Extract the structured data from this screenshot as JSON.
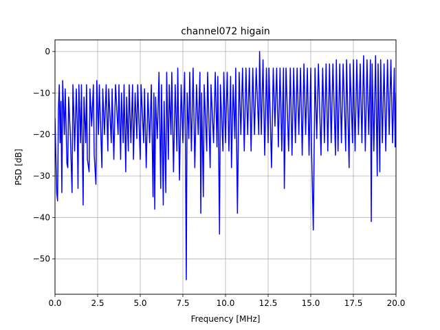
{
  "chart_data": {
    "type": "line",
    "title": "channel072 higain",
    "xlabel": "Frequency [MHz]",
    "ylabel": "PSD [dB]",
    "xlim": [
      0,
      20
    ],
    "ylim": [
      -58.5,
      2.8
    ],
    "x_ticks": [
      0,
      2.5,
      5,
      7.5,
      10,
      12.5,
      15,
      17.5,
      20
    ],
    "x_tick_labels": [
      "0.0",
      "2.5",
      "5.0",
      "7.5",
      "10.0",
      "12.5",
      "15.0",
      "17.5",
      "20.0"
    ],
    "y_ticks": [
      0,
      -10,
      -20,
      -30,
      -40,
      -50
    ],
    "y_tick_labels": [
      "0",
      "−10",
      "−20",
      "−30",
      "−40",
      "−50"
    ],
    "grid": true,
    "legend": "none",
    "series": [
      {
        "color": "#0000ff",
        "points": [
          [
            0.0,
            -16
          ],
          [
            0.05,
            -25
          ],
          [
            0.1,
            -34
          ],
          [
            0.15,
            -36
          ],
          [
            0.2,
            -14
          ],
          [
            0.25,
            -8
          ],
          [
            0.3,
            -22
          ],
          [
            0.35,
            -12
          ],
          [
            0.4,
            -34
          ],
          [
            0.45,
            -7
          ],
          [
            0.55,
            -20
          ],
          [
            0.6,
            -9
          ],
          [
            0.7,
            -27
          ],
          [
            0.75,
            -28
          ],
          [
            0.8,
            -11
          ],
          [
            0.9,
            -20
          ],
          [
            1.0,
            -34
          ],
          [
            1.05,
            -8
          ],
          [
            1.1,
            -14
          ],
          [
            1.15,
            -24
          ],
          [
            1.25,
            -9
          ],
          [
            1.3,
            -17
          ],
          [
            1.35,
            -33
          ],
          [
            1.4,
            -8
          ],
          [
            1.5,
            -22
          ],
          [
            1.55,
            -8
          ],
          [
            1.65,
            -37
          ],
          [
            1.7,
            -11
          ],
          [
            1.8,
            -22
          ],
          [
            1.85,
            -8
          ],
          [
            1.9,
            -26
          ],
          [
            2.0,
            -29
          ],
          [
            2.05,
            -9
          ],
          [
            2.15,
            -18
          ],
          [
            2.25,
            -8
          ],
          [
            2.3,
            -25
          ],
          [
            2.4,
            -32
          ],
          [
            2.45,
            -7
          ],
          [
            2.55,
            -20
          ],
          [
            2.6,
            -8
          ],
          [
            2.75,
            -28
          ],
          [
            2.8,
            -9
          ],
          [
            2.9,
            -20
          ],
          [
            3.0,
            -8
          ],
          [
            3.1,
            -24
          ],
          [
            3.15,
            -9
          ],
          [
            3.3,
            -22
          ],
          [
            3.35,
            -9
          ],
          [
            3.45,
            -26
          ],
          [
            3.55,
            -8
          ],
          [
            3.7,
            -20
          ],
          [
            3.75,
            -8
          ],
          [
            3.85,
            -26
          ],
          [
            3.9,
            -10
          ],
          [
            4.0,
            -22
          ],
          [
            4.05,
            -8
          ],
          [
            4.15,
            -29
          ],
          [
            4.2,
            -11
          ],
          [
            4.3,
            -24
          ],
          [
            4.35,
            -8
          ],
          [
            4.45,
            -22
          ],
          [
            4.55,
            -8
          ],
          [
            4.6,
            -26
          ],
          [
            4.7,
            -10
          ],
          [
            4.8,
            -21
          ],
          [
            4.85,
            -8
          ],
          [
            5.0,
            -26
          ],
          [
            5.05,
            -8
          ],
          [
            5.2,
            -22
          ],
          [
            5.25,
            -9
          ],
          [
            5.35,
            -28
          ],
          [
            5.45,
            -10
          ],
          [
            5.55,
            -22
          ],
          [
            5.65,
            -8
          ],
          [
            5.75,
            -35
          ],
          [
            5.8,
            -10
          ],
          [
            5.85,
            -38
          ],
          [
            5.9,
            -11
          ],
          [
            6.0,
            -21
          ],
          [
            6.1,
            -5
          ],
          [
            6.2,
            -33
          ],
          [
            6.25,
            -8
          ],
          [
            6.35,
            -37
          ],
          [
            6.4,
            -12
          ],
          [
            6.5,
            -34
          ],
          [
            6.55,
            -5
          ],
          [
            6.65,
            -26
          ],
          [
            6.7,
            -8
          ],
          [
            6.8,
            -20
          ],
          [
            6.85,
            -5
          ],
          [
            6.95,
            -29
          ],
          [
            7.05,
            -8
          ],
          [
            7.15,
            -24
          ],
          [
            7.2,
            -4
          ],
          [
            7.3,
            -31
          ],
          [
            7.4,
            -8
          ],
          [
            7.5,
            -22
          ],
          [
            7.6,
            -5
          ],
          [
            7.65,
            -22
          ],
          [
            7.7,
            -55
          ],
          [
            7.75,
            -10
          ],
          [
            7.85,
            -21
          ],
          [
            7.9,
            -5
          ],
          [
            8.0,
            -24
          ],
          [
            8.1,
            -4
          ],
          [
            8.2,
            -28
          ],
          [
            8.3,
            -8
          ],
          [
            8.4,
            -20
          ],
          [
            8.5,
            -5
          ],
          [
            8.55,
            -39
          ],
          [
            8.6,
            -10
          ],
          [
            8.7,
            -35
          ],
          [
            8.75,
            -8
          ],
          [
            8.9,
            -24
          ],
          [
            8.95,
            -5
          ],
          [
            9.1,
            -28
          ],
          [
            9.15,
            -8
          ],
          [
            9.3,
            -22
          ],
          [
            9.4,
            -5
          ],
          [
            9.5,
            -23
          ],
          [
            9.55,
            -6
          ],
          [
            9.65,
            -44
          ],
          [
            9.7,
            -8
          ],
          [
            9.85,
            -24
          ],
          [
            9.9,
            -5
          ],
          [
            10.0,
            -22
          ],
          [
            10.1,
            -5
          ],
          [
            10.2,
            -24
          ],
          [
            10.3,
            -6
          ],
          [
            10.35,
            -28
          ],
          [
            10.45,
            -8
          ],
          [
            10.55,
            -21
          ],
          [
            10.6,
            -4
          ],
          [
            10.7,
            -39
          ],
          [
            10.8,
            -5
          ],
          [
            10.9,
            -20
          ],
          [
            11.0,
            -4
          ],
          [
            11.1,
            -24
          ],
          [
            11.2,
            -4
          ],
          [
            11.3,
            -20
          ],
          [
            11.4,
            -4
          ],
          [
            11.5,
            -24
          ],
          [
            11.6,
            -4
          ],
          [
            11.7,
            -20
          ],
          [
            11.8,
            -4
          ],
          [
            11.95,
            -20
          ],
          [
            12.0,
            0
          ],
          [
            12.1,
            -20
          ],
          [
            12.2,
            -2
          ],
          [
            12.3,
            -25
          ],
          [
            12.4,
            -4
          ],
          [
            12.5,
            -22
          ],
          [
            12.55,
            -4
          ],
          [
            12.7,
            -28
          ],
          [
            12.8,
            -4
          ],
          [
            12.9,
            -18
          ],
          [
            13.0,
            -4
          ],
          [
            13.1,
            -23
          ],
          [
            13.2,
            -4
          ],
          [
            13.3,
            -24
          ],
          [
            13.4,
            -4
          ],
          [
            13.45,
            -33
          ],
          [
            13.55,
            -4
          ],
          [
            13.7,
            -24
          ],
          [
            13.8,
            -4
          ],
          [
            13.9,
            -25
          ],
          [
            14.0,
            -4
          ],
          [
            14.1,
            -22
          ],
          [
            14.2,
            -4
          ],
          [
            14.3,
            -20
          ],
          [
            14.4,
            -4
          ],
          [
            14.5,
            -25
          ],
          [
            14.6,
            -3
          ],
          [
            14.7,
            -20
          ],
          [
            14.8,
            -4
          ],
          [
            14.9,
            -25
          ],
          [
            15.0,
            -4
          ],
          [
            15.05,
            -24
          ],
          [
            15.15,
            -43
          ],
          [
            15.25,
            -4
          ],
          [
            15.35,
            -21
          ],
          [
            15.45,
            -3
          ],
          [
            15.6,
            -25
          ],
          [
            15.7,
            -4
          ],
          [
            15.8,
            -22
          ],
          [
            15.9,
            -3
          ],
          [
            16.0,
            -24
          ],
          [
            16.1,
            -3
          ],
          [
            16.2,
            -22
          ],
          [
            16.3,
            -3
          ],
          [
            16.45,
            -25
          ],
          [
            16.5,
            -2
          ],
          [
            16.6,
            -24
          ],
          [
            16.7,
            -3
          ],
          [
            16.8,
            -22
          ],
          [
            16.9,
            -3
          ],
          [
            17.05,
            -24
          ],
          [
            17.1,
            -2
          ],
          [
            17.25,
            -28
          ],
          [
            17.3,
            -3
          ],
          [
            17.45,
            -22
          ],
          [
            17.5,
            -2
          ],
          [
            17.6,
            -24
          ],
          [
            17.7,
            -2
          ],
          [
            17.8,
            -20
          ],
          [
            17.9,
            -3
          ],
          [
            18.0,
            -22
          ],
          [
            18.1,
            -1
          ],
          [
            18.2,
            -24
          ],
          [
            18.3,
            -2
          ],
          [
            18.4,
            -20
          ],
          [
            18.5,
            -2
          ],
          [
            18.55,
            -41
          ],
          [
            18.6,
            -3
          ],
          [
            18.7,
            -24
          ],
          [
            18.8,
            -1
          ],
          [
            18.9,
            -30
          ],
          [
            18.95,
            -3
          ],
          [
            19.05,
            -29
          ],
          [
            19.1,
            -2
          ],
          [
            19.2,
            -22
          ],
          [
            19.3,
            -3
          ],
          [
            19.4,
            -24
          ],
          [
            19.5,
            -2
          ],
          [
            19.6,
            -20
          ],
          [
            19.7,
            -2
          ],
          [
            19.8,
            -22
          ],
          [
            19.9,
            -4
          ],
          [
            19.95,
            -23
          ],
          [
            20.0,
            -10
          ]
        ]
      }
    ]
  }
}
